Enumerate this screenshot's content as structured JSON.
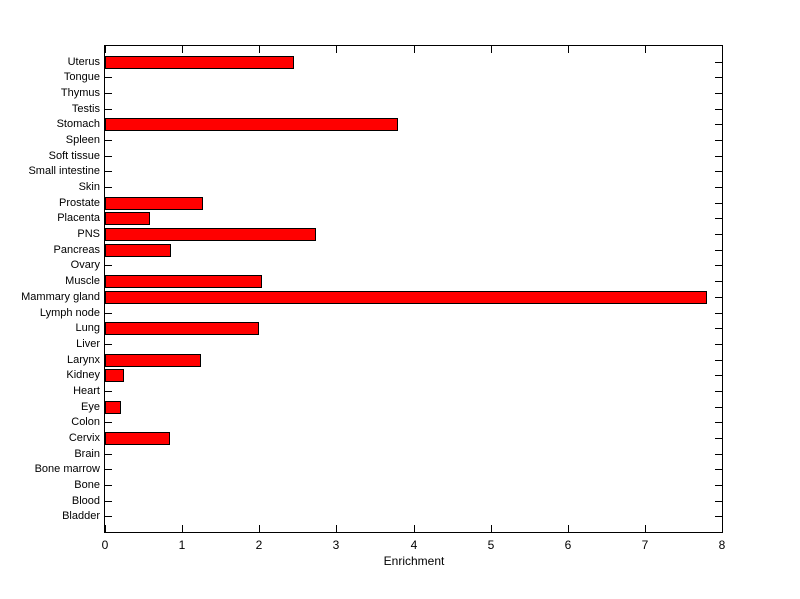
{
  "chart_data": {
    "type": "bar",
    "orientation": "horizontal",
    "title": "",
    "xlabel": "Enrichment",
    "ylabel": "",
    "xlim": [
      0,
      8
    ],
    "xticks": [
      "0",
      "1",
      "2",
      "3",
      "4",
      "5",
      "6",
      "7",
      "8"
    ],
    "grid": false,
    "legend": false,
    "bar_color": "#ff0000",
    "bar_edge_color": "#000000",
    "axis_color": "#000000",
    "background_color": "#ffffff",
    "categories": [
      "Uterus",
      "Tongue",
      "Thymus",
      "Testis",
      "Stomach",
      "Spleen",
      "Soft tissue",
      "Small intestine",
      "Skin",
      "Prostate",
      "Placenta",
      "PNS",
      "Pancreas",
      "Ovary",
      "Muscle",
      "Mammary gland",
      "Lymph node",
      "Lung",
      "Liver",
      "Larynx",
      "Kidney",
      "Heart",
      "Eye",
      "Colon",
      "Cervix",
      "Brain",
      "Bone marrow",
      "Bone",
      "Blood",
      "Bladder"
    ],
    "values": [
      2.45,
      0,
      0,
      0,
      3.8,
      0,
      0,
      0,
      0,
      1.27,
      0.58,
      2.74,
      0.86,
      0,
      2.04,
      7.8,
      0,
      2.0,
      0,
      1.24,
      0.25,
      0,
      0.21,
      0,
      0.84,
      0,
      0,
      0,
      0,
      0
    ]
  }
}
